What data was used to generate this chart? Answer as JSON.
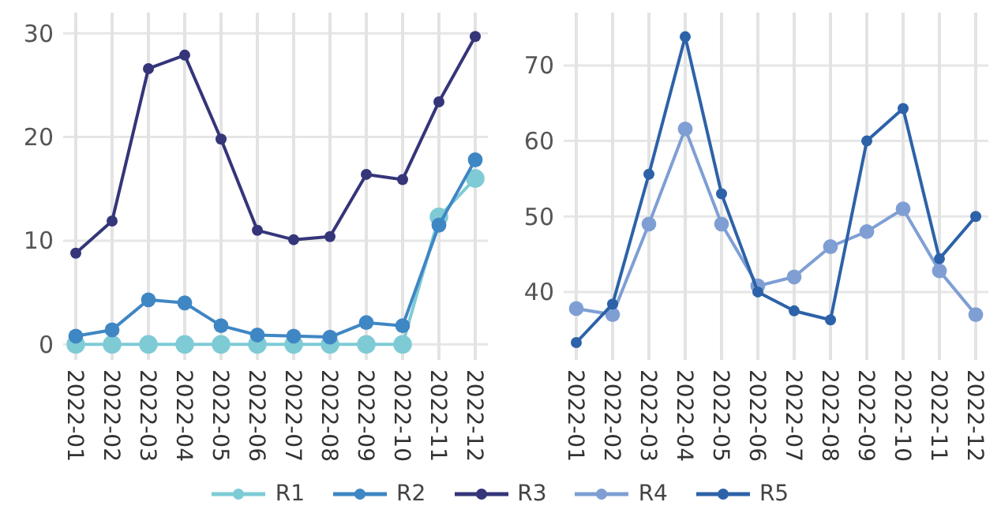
{
  "chart_data": [
    {
      "type": "line",
      "categories": [
        "2022-01",
        "2022-02",
        "2022-03",
        "2022-04",
        "2022-05",
        "2022-06",
        "2022-07",
        "2022-08",
        "2022-09",
        "2022-10",
        "2022-11",
        "2022-12"
      ],
      "ylim": [
        -1.5,
        32
      ],
      "yticks": [
        0,
        10,
        20,
        30
      ],
      "grid": true,
      "marker": "circle",
      "legend": "bottom",
      "series": [
        {
          "name": "R1",
          "color": "#7ecbd6",
          "values": [
            0,
            0,
            0,
            0,
            0,
            0,
            0,
            0,
            0,
            0,
            12.3,
            16.0
          ]
        },
        {
          "name": "R2",
          "color": "#3f86c4",
          "values": [
            0.8,
            1.4,
            4.3,
            4.0,
            1.8,
            0.9,
            0.8,
            0.7,
            2.1,
            1.8,
            11.5,
            17.8
          ]
        },
        {
          "name": "R3",
          "color": "#35357a",
          "values": [
            8.8,
            11.9,
            26.6,
            27.9,
            19.8,
            11.0,
            10.1,
            10.4,
            16.4,
            15.9,
            23.4,
            29.7
          ]
        }
      ]
    },
    {
      "type": "line",
      "categories": [
        "2022-01",
        "2022-02",
        "2022-03",
        "2022-04",
        "2022-05",
        "2022-06",
        "2022-07",
        "2022-08",
        "2022-09",
        "2022-10",
        "2022-11",
        "2022-12"
      ],
      "ylim": [
        31,
        77
      ],
      "yticks": [
        40,
        50,
        60,
        70
      ],
      "grid": true,
      "marker": "circle",
      "legend": "bottom",
      "series": [
        {
          "name": "R4",
          "color": "#7f9fd4",
          "values": [
            37.8,
            37.0,
            49.0,
            61.6,
            49.0,
            40.8,
            42.0,
            46.0,
            48.0,
            51.0,
            42.8,
            37.0
          ]
        },
        {
          "name": "R5",
          "color": "#2d62a8",
          "values": [
            33.3,
            38.4,
            55.6,
            73.8,
            53.0,
            40.0,
            37.5,
            36.3,
            60.0,
            64.3,
            44.4,
            50.0
          ]
        }
      ]
    }
  ]
}
